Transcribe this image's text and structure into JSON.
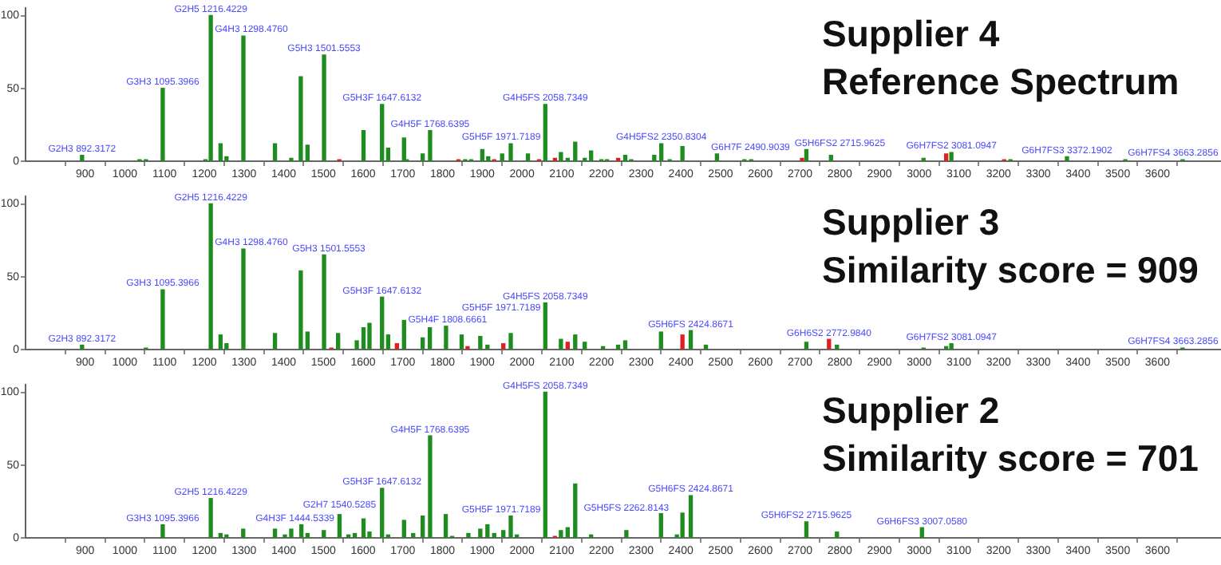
{
  "chart_data": [
    {
      "type": "bar",
      "title": "Supplier 4",
      "subtitle": "Reference Spectrum",
      "grid": false,
      "legend": false,
      "xlim": [
        750,
        3760
      ],
      "xticks": [
        900,
        1000,
        1100,
        1200,
        1300,
        1400,
        1500,
        1600,
        1700,
        1800,
        1900,
        2000,
        2100,
        2200,
        2300,
        2400,
        2500,
        2600,
        2700,
        2800,
        2900,
        3000,
        3100,
        3200,
        3300,
        3400,
        3500,
        3600
      ],
      "ylim": [
        0,
        105
      ],
      "yticks": [
        0,
        50,
        100
      ],
      "x": [
        892.3,
        1037,
        1053,
        1095.4,
        1203,
        1216.4,
        1241,
        1256,
        1298.5,
        1378,
        1419,
        1443,
        1460,
        1501.6,
        1540,
        1601,
        1647.6,
        1663,
        1703,
        1710,
        1750,
        1768.6,
        1840,
        1857,
        1872,
        1900,
        1915,
        1930,
        1950,
        1971.7,
        2015,
        2043,
        2058.7,
        2083,
        2098,
        2115,
        2134,
        2158,
        2174,
        2200,
        2214,
        2242,
        2260,
        2275,
        2333,
        2350.8,
        2372,
        2404,
        2490.9,
        2560,
        2577,
        2705,
        2716,
        2778,
        3011,
        3068,
        3081.1,
        3214,
        3230,
        3372.2,
        3519,
        3663.3
      ],
      "values": [
        4,
        1,
        1,
        50,
        1,
        100,
        12,
        3,
        86,
        12,
        2,
        58,
        11,
        73,
        1,
        21,
        39,
        9,
        16,
        1,
        5,
        21,
        1,
        1,
        1,
        8,
        3,
        1,
        5,
        12,
        5,
        1,
        39,
        2,
        6,
        2,
        13,
        2,
        7,
        1,
        1,
        2,
        4,
        1,
        4,
        12,
        1,
        10,
        5,
        1,
        1,
        2,
        8,
        4,
        2,
        5,
        6,
        1,
        1,
        3,
        1,
        1
      ],
      "colors": [
        "#1e8c1e",
        "#1e8c1e",
        "#1e8c1e",
        "#1e8c1e",
        "#1e8c1e",
        "#1e8c1e",
        "#1e8c1e",
        "#1e8c1e",
        "#1e8c1e",
        "#1e8c1e",
        "#1e8c1e",
        "#1e8c1e",
        "#1e8c1e",
        "#1e8c1e",
        "#e02020",
        "#1e8c1e",
        "#1e8c1e",
        "#1e8c1e",
        "#1e8c1e",
        "#1e8c1e",
        "#1e8c1e",
        "#1e8c1e",
        "#e02020",
        "#1e8c1e",
        "#1e8c1e",
        "#1e8c1e",
        "#1e8c1e",
        "#e02020",
        "#1e8c1e",
        "#1e8c1e",
        "#1e8c1e",
        "#e02020",
        "#1e8c1e",
        "#e02020",
        "#1e8c1e",
        "#1e8c1e",
        "#1e8c1e",
        "#1e8c1e",
        "#1e8c1e",
        "#1e8c1e",
        "#1e8c1e",
        "#e02020",
        "#1e8c1e",
        "#1e8c1e",
        "#1e8c1e",
        "#1e8c1e",
        "#1e8c1e",
        "#1e8c1e",
        "#1e8c1e",
        "#1e8c1e",
        "#1e8c1e",
        "#e02020",
        "#1e8c1e",
        "#1e8c1e",
        "#1e8c1e",
        "#e02020",
        "#1e8c1e",
        "#e02020",
        "#1e8c1e",
        "#1e8c1e",
        "#1e8c1e",
        "#1e8c1e"
      ],
      "annotations": [
        {
          "text": "G2H3 892.3172",
          "x": 892.3,
          "y": 4
        },
        {
          "text": "G3H3 1095.3966",
          "x": 1095.4,
          "y": 50
        },
        {
          "text": "G2H5 1216.4229",
          "x": 1216.4,
          "y": 100
        },
        {
          "text": "G4H3 1298.4760",
          "x": 1298.5,
          "y": 86
        },
        {
          "text": "G5H3 1501.5553",
          "x": 1501.6,
          "y": 73
        },
        {
          "text": "G5H3F 1647.6132",
          "x": 1647.6,
          "y": 39
        },
        {
          "text": "G4H5F 1768.6395",
          "x": 1768.6,
          "y": 21
        },
        {
          "text": "G5H5F 1971.7189",
          "x": 1971.7,
          "y": 12
        },
        {
          "text": "G4H5FS 2058.7349",
          "x": 2058.7,
          "y": 39
        },
        {
          "text": "G4H5FS2 2350.8304",
          "x": 2350.8,
          "y": 12
        },
        {
          "text": "G6H7F 2490.9039",
          "x": 2490.9,
          "y": 5
        },
        {
          "text": "G5H6FS2 2715.9625",
          "x": 2716,
          "y": 8
        },
        {
          "text": "G6H7FS2 3081.0947",
          "x": 3081.1,
          "y": 6
        },
        {
          "text": "G6H7FS3 3372.1902",
          "x": 3372.2,
          "y": 3
        },
        {
          "text": "G6H7FS4 3663.2856",
          "x": 3663.3,
          "y": 1
        }
      ]
    },
    {
      "type": "bar",
      "title": "Supplier 3",
      "subtitle": "Similarity score = 909",
      "grid": false,
      "legend": false,
      "xlim": [
        750,
        3760
      ],
      "xticks": [
        900,
        1000,
        1100,
        1200,
        1300,
        1400,
        1500,
        1600,
        1700,
        1800,
        1900,
        2000,
        2100,
        2200,
        2300,
        2400,
        2500,
        2600,
        2700,
        2800,
        2900,
        3000,
        3100,
        3200,
        3300,
        3400,
        3500,
        3600
      ],
      "ylim": [
        0,
        105
      ],
      "yticks": [
        0,
        50,
        100
      ],
      "x": [
        892.3,
        1053,
        1095.4,
        1216.4,
        1241,
        1256,
        1298.5,
        1378,
        1443,
        1460,
        1501.6,
        1520,
        1537,
        1584,
        1601,
        1616,
        1647.6,
        1663,
        1685,
        1703,
        1750,
        1768,
        1808.7,
        1848,
        1863,
        1895,
        1913,
        1953,
        1971.7,
        2058.7,
        2098,
        2115,
        2134,
        2158,
        2204,
        2242,
        2260,
        2350,
        2404,
        2424.9,
        2463,
        2716,
        2773,
        2793,
        3011,
        3068,
        3081.1,
        3663.3
      ],
      "values": [
        3,
        1,
        41,
        100,
        10,
        4,
        69,
        11,
        54,
        12,
        65,
        1,
        11,
        6,
        15,
        18,
        36,
        10,
        4,
        20,
        8,
        15,
        16,
        10,
        2,
        9,
        3,
        4,
        11,
        32,
        7,
        5,
        10,
        5,
        2,
        3,
        6,
        12,
        10,
        13,
        3,
        5,
        7,
        3,
        1,
        2,
        4,
        1
      ],
      "colors": [
        "#1e8c1e",
        "#1e8c1e",
        "#1e8c1e",
        "#1e8c1e",
        "#1e8c1e",
        "#1e8c1e",
        "#1e8c1e",
        "#1e8c1e",
        "#1e8c1e",
        "#1e8c1e",
        "#1e8c1e",
        "#e02020",
        "#1e8c1e",
        "#1e8c1e",
        "#1e8c1e",
        "#1e8c1e",
        "#1e8c1e",
        "#1e8c1e",
        "#e02020",
        "#1e8c1e",
        "#1e8c1e",
        "#1e8c1e",
        "#1e8c1e",
        "#1e8c1e",
        "#e02020",
        "#1e8c1e",
        "#1e8c1e",
        "#e02020",
        "#1e8c1e",
        "#1e8c1e",
        "#1e8c1e",
        "#e02020",
        "#1e8c1e",
        "#1e8c1e",
        "#1e8c1e",
        "#1e8c1e",
        "#1e8c1e",
        "#1e8c1e",
        "#e02020",
        "#1e8c1e",
        "#1e8c1e",
        "#1e8c1e",
        "#e02020",
        "#1e8c1e",
        "#1e8c1e",
        "#1e8c1e",
        "#1e8c1e",
        "#1e8c1e"
      ],
      "annotations": [
        {
          "text": "G2H3 892.3172",
          "x": 892.3,
          "y": 3
        },
        {
          "text": "G3H3 1095.3966",
          "x": 1095.4,
          "y": 41
        },
        {
          "text": "G2H5 1216.4229",
          "x": 1216.4,
          "y": 100
        },
        {
          "text": "G4H3 1298.4760",
          "x": 1298.5,
          "y": 69
        },
        {
          "text": "G5H3 1501.5553",
          "x": 1501.6,
          "y": 65
        },
        {
          "text": "G5H3F 1647.6132",
          "x": 1647.6,
          "y": 36
        },
        {
          "text": "G5H4F 1808.6661",
          "x": 1808.7,
          "y": 16
        },
        {
          "text": "G5H5F 1971.7189",
          "x": 1971.7,
          "y": 11
        },
        {
          "text": "G4H5FS 2058.7349",
          "x": 2058.7,
          "y": 32
        },
        {
          "text": "G5H6FS 2424.8671",
          "x": 2424.9,
          "y": 13
        },
        {
          "text": "G6H6S2 2772.9840",
          "x": 2773,
          "y": 7
        },
        {
          "text": "G6H7FS2 3081.0947",
          "x": 3081.1,
          "y": 4
        },
        {
          "text": "G6H7FS4 3663.2856",
          "x": 3663.3,
          "y": 1
        }
      ]
    },
    {
      "type": "bar",
      "title": "Supplier 2",
      "subtitle": "Similarity score = 701",
      "grid": false,
      "legend": false,
      "xlim": [
        750,
        3760
      ],
      "xticks": [
        900,
        1000,
        1100,
        1200,
        1300,
        1400,
        1500,
        1600,
        1700,
        1800,
        1900,
        2000,
        2100,
        2200,
        2300,
        2400,
        2500,
        2600,
        2700,
        2800,
        2900,
        3000,
        3100,
        3200,
        3300,
        3400,
        3500,
        3600
      ],
      "ylim": [
        0,
        105
      ],
      "yticks": [
        0,
        50,
        100
      ],
      "x": [
        1095.4,
        1216.4,
        1241,
        1256,
        1298,
        1378,
        1403,
        1419,
        1444.5,
        1460,
        1501,
        1540.5,
        1563,
        1579,
        1601,
        1616,
        1647.6,
        1663,
        1703,
        1726,
        1750,
        1768.6,
        1808,
        1824,
        1865,
        1895,
        1913,
        1930,
        1953,
        1971.7,
        1987,
        2058.7,
        2083,
        2098,
        2115,
        2134,
        2174,
        2262.8,
        2350,
        2390,
        2404,
        2424.9,
        2716,
        2793,
        3007.1
      ],
      "values": [
        9,
        27,
        3,
        2,
        6,
        6,
        2,
        6,
        9,
        3,
        5,
        16,
        2,
        3,
        13,
        4,
        34,
        2,
        12,
        3,
        15,
        70,
        16,
        1,
        3,
        6,
        9,
        3,
        5,
        15,
        2,
        100,
        1,
        5,
        7,
        37,
        2,
        5,
        17,
        2,
        17,
        29,
        11,
        4,
        7
      ],
      "colors": [
        "#1e8c1e",
        "#1e8c1e",
        "#1e8c1e",
        "#1e8c1e",
        "#1e8c1e",
        "#1e8c1e",
        "#1e8c1e",
        "#1e8c1e",
        "#1e8c1e",
        "#1e8c1e",
        "#1e8c1e",
        "#1e8c1e",
        "#1e8c1e",
        "#1e8c1e",
        "#1e8c1e",
        "#1e8c1e",
        "#1e8c1e",
        "#1e8c1e",
        "#1e8c1e",
        "#1e8c1e",
        "#1e8c1e",
        "#1e8c1e",
        "#1e8c1e",
        "#1e8c1e",
        "#1e8c1e",
        "#1e8c1e",
        "#1e8c1e",
        "#1e8c1e",
        "#1e8c1e",
        "#1e8c1e",
        "#1e8c1e",
        "#1e8c1e",
        "#e02020",
        "#1e8c1e",
        "#1e8c1e",
        "#1e8c1e",
        "#1e8c1e",
        "#1e8c1e",
        "#1e8c1e",
        "#1e8c1e",
        "#1e8c1e",
        "#1e8c1e",
        "#1e8c1e",
        "#1e8c1e",
        "#1e8c1e"
      ],
      "annotations": [
        {
          "text": "G3H3 1095.3966",
          "x": 1095.4,
          "y": 9
        },
        {
          "text": "G2H5 1216.4229",
          "x": 1216.4,
          "y": 27
        },
        {
          "text": "G4H3F 1444.5339",
          "x": 1444.5,
          "y": 9
        },
        {
          "text": "G2H7 1540.5285",
          "x": 1540.5,
          "y": 16
        },
        {
          "text": "G5H3F 1647.6132",
          "x": 1647.6,
          "y": 34
        },
        {
          "text": "G4H5F 1768.6395",
          "x": 1768.6,
          "y": 70
        },
        {
          "text": "G5H5F 1971.7189",
          "x": 1971.7,
          "y": 15
        },
        {
          "text": "G4H5FS 2058.7349",
          "x": 2058.7,
          "y": 100
        },
        {
          "text": "G5H5FS 2262.8143",
          "x": 2262.8,
          "y": 5
        },
        {
          "text": "G5H6FS 2424.8671",
          "x": 2424.9,
          "y": 29
        },
        {
          "text": "G5H6FS2 2715.9625",
          "x": 2716,
          "y": 11
        },
        {
          "text": "G6H6FS3 3007.0580",
          "x": 3007.1,
          "y": 7
        }
      ]
    }
  ]
}
